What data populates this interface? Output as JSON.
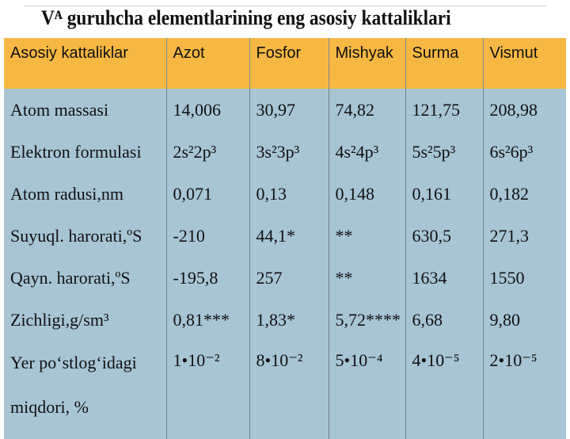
{
  "title": "Vᴬ guruhcha elementlarining eng asosiy kattaliklari",
  "table": {
    "header": [
      "Asosiy kattaliklar",
      "Azot",
      "Fosfor",
      "Mishyak",
      "Surma",
      "Vismut"
    ],
    "rows": [
      [
        "Atom massasi",
        "14,006",
        "30,97",
        "74,82",
        "121,75",
        "208,98"
      ],
      [
        "Elektron formulasi",
        "2s²2p³",
        "3s²3p³",
        "4s²4p³",
        "5s²5p³",
        "6s²6p³"
      ],
      [
        "Atom radusi,nm",
        "0,071",
        "0,13",
        "0,148",
        "0,161",
        "0,182"
      ],
      [
        "Suyuql. harorati,ºS",
        "-210",
        "44,1*",
        "**",
        "630,5",
        "271,3"
      ],
      [
        "Qayn. harorati,ºS",
        "-195,8",
        "257",
        "**",
        "1634",
        "1550"
      ],
      [
        "Zichligi,g/sm³",
        "0,81***",
        "1,83*",
        "5,72****",
        "6,68",
        "9,80"
      ],
      [
        "Yer po‘stlog‘idagi miqdori, %",
        "1•10⁻²",
        "8•10⁻²",
        "5•10⁻⁴",
        "4•10⁻⁵",
        "2•10⁻⁵"
      ]
    ]
  }
}
